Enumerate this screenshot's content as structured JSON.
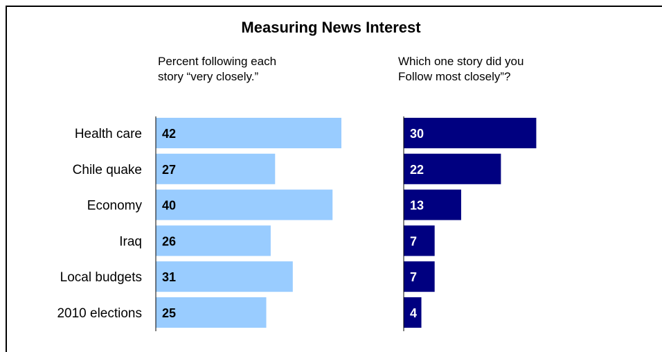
{
  "chart_data": [
    {
      "type": "bar",
      "orientation": "horizontal",
      "title": "Measuring News Interest",
      "subtitle": "Percent following each\nstory “very closely.”",
      "categories": [
        "Health care",
        "Chile quake",
        "Economy",
        "Iraq",
        "Local budgets",
        "2010 elections"
      ],
      "values": [
        42,
        27,
        40,
        26,
        31,
        25
      ],
      "color": "#99CCFF",
      "label_color": "#000000",
      "xlim": [
        0,
        45
      ],
      "grid": false
    },
    {
      "type": "bar",
      "orientation": "horizontal",
      "subtitle": "Which one story did you\nFollow most closely”?",
      "categories": [
        "Health care",
        "Chile quake",
        "Economy",
        "Iraq",
        "Local budgets",
        "2010 elections"
      ],
      "values": [
        30,
        22,
        13,
        7,
        7,
        4
      ],
      "color": "#000080",
      "label_color": "#FFFFFF",
      "xlim": [
        0,
        45
      ],
      "grid": false
    }
  ]
}
